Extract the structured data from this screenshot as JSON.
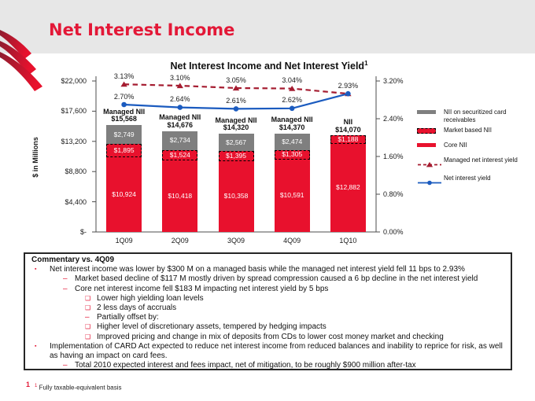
{
  "slide": {
    "title": "Net Interest Income",
    "page_number": "1",
    "footnote_marker": "1",
    "footnote": "Fully taxable-equivalent basis"
  },
  "colors": {
    "accent_red": "#e31837",
    "core_red": "#e8112d",
    "securitized_gray": "#7f7f7f",
    "managed_line_red": "#a51c30",
    "yield_line_blue": "#1b5bbf",
    "banner_gray": "#e7e7e7"
  },
  "chart_data": {
    "type": "combo-stacked-bar-line",
    "title": "Net Interest Income and Net Interest Yield",
    "title_superscript": "1",
    "ylabel_left": "$ in Millions",
    "categories": [
      "1Q09",
      "2Q09",
      "3Q09",
      "4Q09",
      "1Q10"
    ],
    "left_axis_ticks": [
      "$22,000",
      "$17,600",
      "$13,200",
      "$8,800",
      "$4,400",
      "$-"
    ],
    "left_axis_range": [
      0,
      22000
    ],
    "right_axis_ticks": [
      "3.20%",
      "2.40%",
      "1.60%",
      "0.80%",
      "0.00%"
    ],
    "right_axis_range": [
      0,
      3.2
    ],
    "grid": false,
    "legend_position": "right",
    "bar_series": [
      {
        "name": "Core NII",
        "style": "solid",
        "values": [
          10924,
          10418,
          10358,
          10591,
          12882
        ],
        "labels": [
          "$10,924",
          "$10,418",
          "$10,358",
          "$10,591",
          "$12,882"
        ]
      },
      {
        "name": "Market based NII",
        "style": "dashed-border",
        "values": [
          1895,
          1524,
          1395,
          1305,
          1188
        ],
        "labels": [
          "$1,895",
          "$1,524",
          "$1,395",
          "$1,305",
          "$1,188"
        ]
      },
      {
        "name": "NII on securitized card receivables",
        "style": "gray",
        "values": [
          2749,
          2734,
          2567,
          2474,
          0
        ],
        "labels": [
          "$2,749",
          "$2,734",
          "$2,567",
          "$2,474",
          ""
        ]
      }
    ],
    "bar_totals": [
      {
        "title": "Managed NII",
        "value": "$15,568"
      },
      {
        "title": "Managed NII",
        "value": "$14,676"
      },
      {
        "title": "Managed NII",
        "value": "$14,320"
      },
      {
        "title": "Managed NII",
        "value": "$14,370"
      },
      {
        "title": "NII",
        "value": "$14,070"
      }
    ],
    "line_series": [
      {
        "name": "Managed net interest yield",
        "style": "dashed",
        "marker": "triangle",
        "values": [
          3.13,
          3.1,
          3.05,
          3.04,
          2.93
        ],
        "labels": [
          "3.13%",
          "3.10%",
          "3.05%",
          "3.04%",
          "2.93%"
        ]
      },
      {
        "name": "Net interest yield",
        "style": "solid",
        "marker": "circle",
        "values": [
          2.7,
          2.64,
          2.61,
          2.62,
          2.93
        ],
        "labels": [
          "2.70%",
          "2.64%",
          "2.61%",
          "2.62%",
          ""
        ]
      }
    ],
    "legend": [
      {
        "swatch": "bar-gray",
        "label": "NII on securitized card receivables",
        "mb": 4
      },
      {
        "swatch": "bar-dashed",
        "label": "Market based NII",
        "mb": 9
      },
      {
        "swatch": "bar-red",
        "label": "Core NII",
        "mb": 10
      },
      {
        "swatch": "line-dashed",
        "label": "Managed net interest yield",
        "mb": 3
      },
      {
        "swatch": "line-solid",
        "label": "Net interest yield",
        "mb": 0
      }
    ]
  },
  "commentary": {
    "heading": "Commentary vs. 4Q09",
    "items": [
      {
        "level": 1,
        "marker": "bullet",
        "text": "Net interest income was lower by $300 M on a managed basis while the managed net interest yield fell 11 bps to 2.93%"
      },
      {
        "level": 2,
        "marker": "dash",
        "text": "Market based decline of $117 M mostly driven by spread compression caused a 6 bp decline in the net interest yield"
      },
      {
        "level": 2,
        "marker": "dash",
        "text": "Core net interest income fell $183 M impacting net interest yield by 5 bps"
      },
      {
        "level": 3,
        "marker": "osquare",
        "text": "Lower high yielding loan levels"
      },
      {
        "level": 3,
        "marker": "osquare",
        "text": "2 less days of accruals"
      },
      {
        "level": 3,
        "marker": "dash",
        "text": "Partially offset by:"
      },
      {
        "level": 3,
        "marker": "osquare",
        "text": "Higher level of discretionary assets, tempered by hedging impacts"
      },
      {
        "level": 3,
        "marker": "osquare",
        "text": "Improved pricing and change in mix of deposits from CDs to lower cost money market and checking"
      },
      {
        "level": 1,
        "marker": "bullet",
        "text": "Implementation of CARD Act expected to reduce net interest income from reduced balances and inability to reprice for risk, as well as having an impact on card fees."
      },
      {
        "level": 2,
        "marker": "dash",
        "text": "Total 2010 expected interest and fees impact, net of mitigation, to be roughly $900 million after-tax"
      }
    ]
  }
}
